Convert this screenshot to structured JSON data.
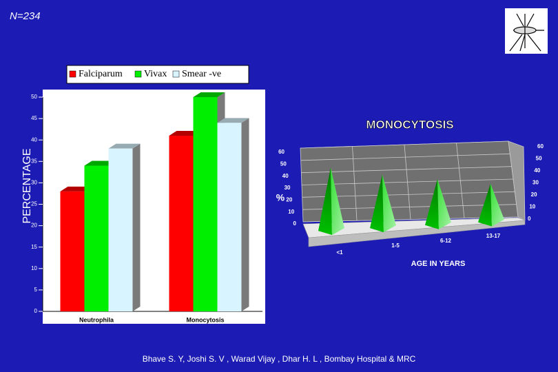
{
  "note": "N=234",
  "footer": "Bhave S. Y, Joshi S. V ,  Warad Vijay ,  Dhar H. L , Bombay Hospital & MRC",
  "chart_data": [
    {
      "type": "bar",
      "ylabel": "PERCENTAGE",
      "categories": [
        "Neutrophila",
        "Monocytosis"
      ],
      "series": [
        {
          "name": "Falciparum",
          "color": "#ff0000",
          "values": [
            28,
            41
          ]
        },
        {
          "name": "Vivax",
          "color": "#00ee00",
          "values": [
            34,
            50
          ]
        },
        {
          "name": "Smear -ve",
          "color": "#d8f4ff",
          "values": [
            38,
            44
          ]
        }
      ],
      "ylim": [
        0,
        50
      ],
      "yticks": [
        0,
        5,
        10,
        15,
        20,
        25,
        30,
        35,
        40,
        45,
        50
      ],
      "legend": "top"
    },
    {
      "type": "pyramid",
      "title": "MONOCYTOSIS",
      "xlabel": "AGE IN YEARS",
      "ylabel": "%",
      "categories": [
        "<1",
        "1-5",
        "6-12",
        "13-17"
      ],
      "values": [
        50,
        42,
        36,
        30
      ],
      "color": "#00b000",
      "ylim": [
        0,
        60
      ],
      "yticks": [
        0,
        10,
        20,
        30,
        40,
        50,
        60
      ]
    }
  ]
}
